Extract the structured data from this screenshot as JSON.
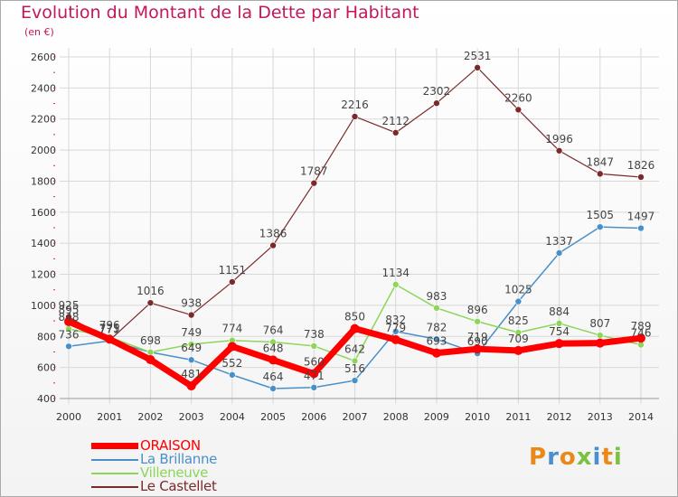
{
  "chart_title": "Evolution du Montant de la Dette par Habitant",
  "chart_unit": "(en €)",
  "logo_text": "Proxiti",
  "colors": {
    "title": "#c2185b",
    "grid": "#d8d8d8",
    "axis_text": "#333333",
    "point_label": "#444444"
  },
  "chart_data": {
    "type": "line",
    "title": "Evolution du Montant de la Dette par Habitant",
    "subtitle": "(en €)",
    "xlabel": "",
    "ylabel": "",
    "ylim": [
      400,
      2600
    ],
    "yticks": [
      400,
      600,
      800,
      1000,
      1200,
      1400,
      1600,
      1800,
      2000,
      2200,
      2400,
      2600
    ],
    "grid": true,
    "legend_position": "bottom-left",
    "x": [
      "2000",
      "2001",
      "2002",
      "2003",
      "2004",
      "2005",
      "2006",
      "2007",
      "2008",
      "2009",
      "2010",
      "2011",
      "2012",
      "2013",
      "2014"
    ],
    "series": [
      {
        "name": "ORAISON",
        "color": "#ff0000",
        "values": [
          895,
          782,
          650,
          481,
          735,
          648,
          560,
          850,
          779,
          693,
          719,
          709,
          754,
          757,
          789
        ],
        "labels": [
          "895",
          "",
          "",
          "481",
          "",
          "648",
          "560",
          "850",
          "779",
          "693",
          "719",
          "709",
          "754",
          "",
          "789"
        ]
      },
      {
        "name": "La Brillanne",
        "color": "#4a90c8",
        "values": [
          736,
          771,
          698,
          649,
          552,
          464,
          471,
          516,
          832,
          782,
          690,
          1025,
          1337,
          1505,
          1497
        ],
        "labels": [
          "736",
          "771",
          "",
          "649",
          "552",
          "464",
          "471",
          "516",
          "832",
          "782",
          "690",
          "1025",
          "1337",
          "1505",
          "1497"
        ]
      },
      {
        "name": "Villeneuve",
        "color": "#8cd65a",
        "values": [
          848,
          796,
          698,
          749,
          774,
          764,
          738,
          642,
          1134,
          983,
          896,
          825,
          884,
          807,
          746
        ],
        "labels": [
          "848",
          "796",
          "698",
          "749",
          "774",
          "764",
          "738",
          "642",
          "1134",
          "983",
          "896",
          "825",
          "884",
          "807",
          "746"
        ]
      },
      {
        "name": "Le Castellet",
        "color": "#7a2a2a",
        "values": [
          925,
          775,
          1016,
          938,
          1151,
          1386,
          1787,
          2216,
          2112,
          2302,
          2531,
          2260,
          1996,
          1847,
          1826
        ],
        "labels": [
          "925",
          "775",
          "1016",
          "938",
          "1151",
          "1386",
          "1787",
          "2216",
          "2112",
          "2302",
          "2531",
          "2260",
          "1996",
          "1847",
          "1826"
        ]
      }
    ]
  }
}
